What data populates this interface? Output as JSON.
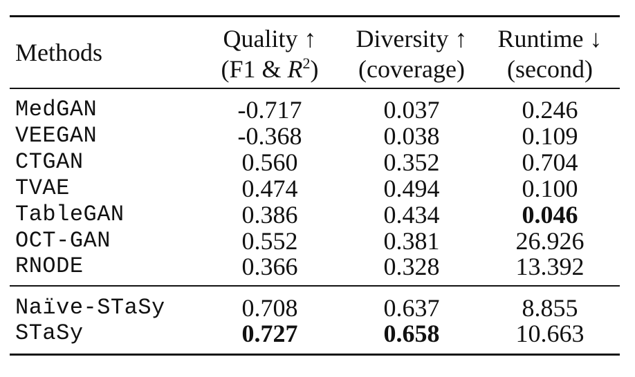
{
  "table": {
    "header": {
      "method": "Methods",
      "quality_title": "Quality ↑",
      "quality_sub_prefix": "(F1 & ",
      "quality_sub_var": "R",
      "quality_sub_exp": "2",
      "quality_sub_suffix": ")",
      "diversity_title": "Diversity ↑",
      "diversity_sub": "(coverage)",
      "runtime_title": "Runtime ↓",
      "runtime_sub": "(second)"
    },
    "baseline_rows": [
      {
        "method": "MedGAN",
        "quality": "-0.717",
        "diversity": "0.037",
        "runtime": "0.246"
      },
      {
        "method": "VEEGAN",
        "quality": "-0.368",
        "diversity": "0.038",
        "runtime": "0.109"
      },
      {
        "method": "CTGAN",
        "quality": "0.560",
        "diversity": "0.352",
        "runtime": "0.704"
      },
      {
        "method": "TVAE",
        "quality": "0.474",
        "diversity": "0.494",
        "runtime": "0.100"
      },
      {
        "method": "TableGAN",
        "quality": "0.386",
        "diversity": "0.434",
        "runtime": "0.046"
      },
      {
        "method": "OCT-GAN",
        "quality": "0.552",
        "diversity": "0.381",
        "runtime": "26.926"
      },
      {
        "method": "RNODE",
        "quality": "0.366",
        "diversity": "0.328",
        "runtime": "13.392"
      }
    ],
    "proposed_rows": [
      {
        "method": "Naïve-STaSy",
        "quality": "0.708",
        "diversity": "0.637",
        "runtime": "8.855"
      },
      {
        "method": "STaSy",
        "quality": "0.727",
        "diversity": "0.658",
        "runtime": "10.663"
      }
    ]
  }
}
